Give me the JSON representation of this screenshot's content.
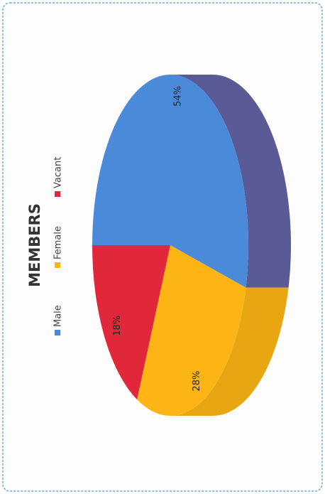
{
  "chart_data": {
    "type": "pie",
    "title": "MEMBERS",
    "categories": [
      "Male",
      "Female",
      "Vacant"
    ],
    "values": [
      54,
      28,
      18
    ],
    "value_labels": [
      "54%",
      "28%",
      "18%"
    ],
    "colors": [
      "#4a8ad8",
      "#fcb514",
      "#e0283a"
    ],
    "legend": "top"
  }
}
